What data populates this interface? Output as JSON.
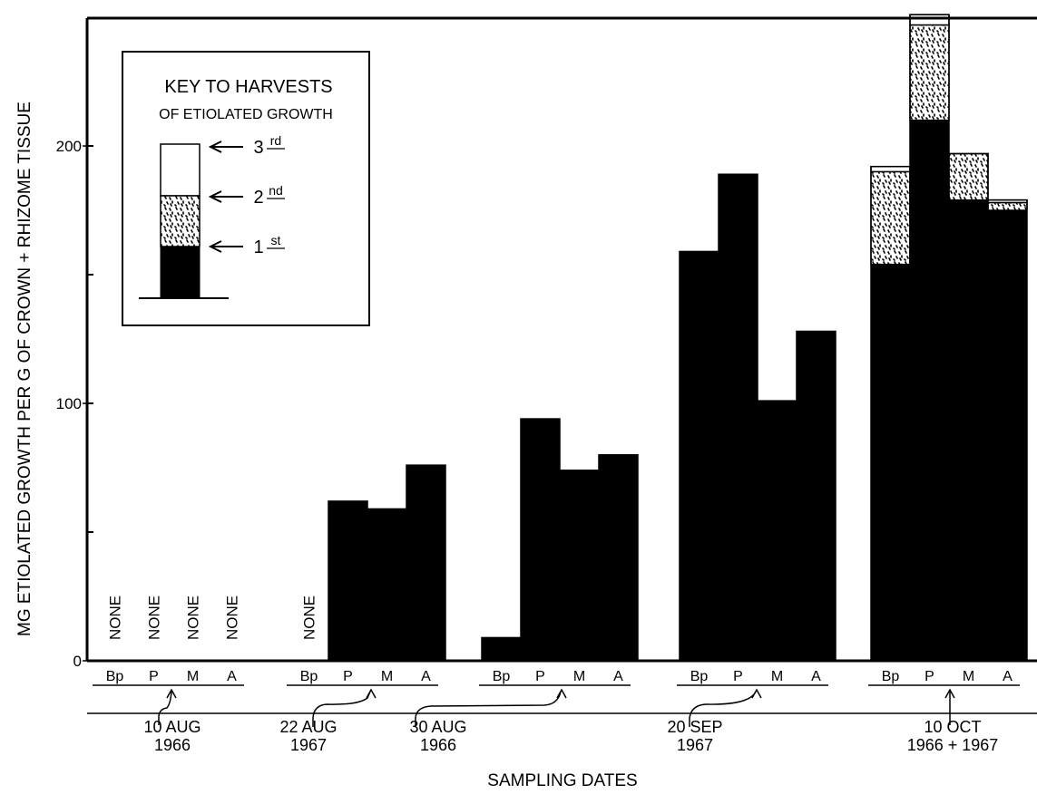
{
  "chart_data": {
    "type": "bar",
    "title": "",
    "ylabel": "MG ETIOLATED GROWTH PER G OF CROWN + RHIZOME TISSUE",
    "xlabel": "SAMPLING DATES",
    "ylim": [
      0,
      250
    ],
    "y_ticks": [
      0,
      100,
      200
    ],
    "y_tick_labels": [
      "0",
      "100",
      "200"
    ],
    "legend": {
      "position": "top-left",
      "title_line1": "KEY TO HARVESTS",
      "title_line2": "OF ETIOLATED GROWTH",
      "entries": [
        {
          "base": "3",
          "sup": "rd",
          "fill": "white"
        },
        {
          "base": "2",
          "sup": "nd",
          "fill": "dots"
        },
        {
          "base": "1",
          "sup": "st",
          "fill": "black"
        }
      ]
    },
    "none_label": "NONE",
    "series": [
      {
        "name": "1st",
        "fill": "black"
      },
      {
        "name": "2nd",
        "fill": "dots"
      },
      {
        "name": "3rd",
        "fill": "white"
      }
    ],
    "groups": [
      {
        "categories": [
          "Bp",
          "P",
          "M",
          "A"
        ],
        "date": "10  AUG",
        "year": "1966",
        "bars": [
          {
            "label": "Bp",
            "none": true,
            "values": [
              0,
              0,
              0
            ]
          },
          {
            "label": "P",
            "none": true,
            "values": [
              0,
              0,
              0
            ]
          },
          {
            "label": "M",
            "none": true,
            "values": [
              0,
              0,
              0
            ]
          },
          {
            "label": "A",
            "none": true,
            "values": [
              0,
              0,
              0
            ]
          }
        ]
      },
      {
        "categories": [
          "Bp",
          "P",
          "M",
          "A"
        ],
        "date": "22  AUG",
        "year": "1967",
        "bars": [
          {
            "label": "Bp",
            "none": true,
            "values": [
              0,
              0,
              0
            ]
          },
          {
            "label": "P",
            "values": [
              62,
              0,
              0
            ]
          },
          {
            "label": "M",
            "values": [
              59,
              0,
              0
            ]
          },
          {
            "label": "A",
            "values": [
              76,
              0,
              0
            ]
          }
        ]
      },
      {
        "categories": [
          "Bp",
          "P",
          "M",
          "A"
        ],
        "date": "30  AUG",
        "year": "1966",
        "bars": [
          {
            "label": "Bp",
            "values": [
              9,
              0,
              0
            ]
          },
          {
            "label": "P",
            "values": [
              94,
              0,
              0
            ]
          },
          {
            "label": "M",
            "values": [
              74,
              0,
              0
            ]
          },
          {
            "label": "A",
            "values": [
              80,
              0,
              0
            ]
          }
        ]
      },
      {
        "categories": [
          "Bp",
          "P",
          "M",
          "A"
        ],
        "date": "20 SEP",
        "year": "1967",
        "bars": [
          {
            "label": "Bp",
            "values": [
              159,
              0,
              0
            ]
          },
          {
            "label": "P",
            "values": [
              189,
              0,
              0
            ]
          },
          {
            "label": "M",
            "values": [
              101,
              0,
              0
            ]
          },
          {
            "label": "A",
            "values": [
              128,
              0,
              0
            ]
          }
        ]
      },
      {
        "categories": [
          "Bp",
          "P",
          "M",
          "A"
        ],
        "date": "10  OCT",
        "year": "1966 + 1967",
        "bars": [
          {
            "label": "Bp",
            "values": [
              154,
              36,
              2
            ]
          },
          {
            "label": "P",
            "values": [
              210,
              37,
              4
            ]
          },
          {
            "label": "M",
            "values": [
              179,
              18,
              0
            ]
          },
          {
            "label": "A",
            "values": [
              175,
              3,
              1
            ]
          }
        ]
      }
    ]
  }
}
